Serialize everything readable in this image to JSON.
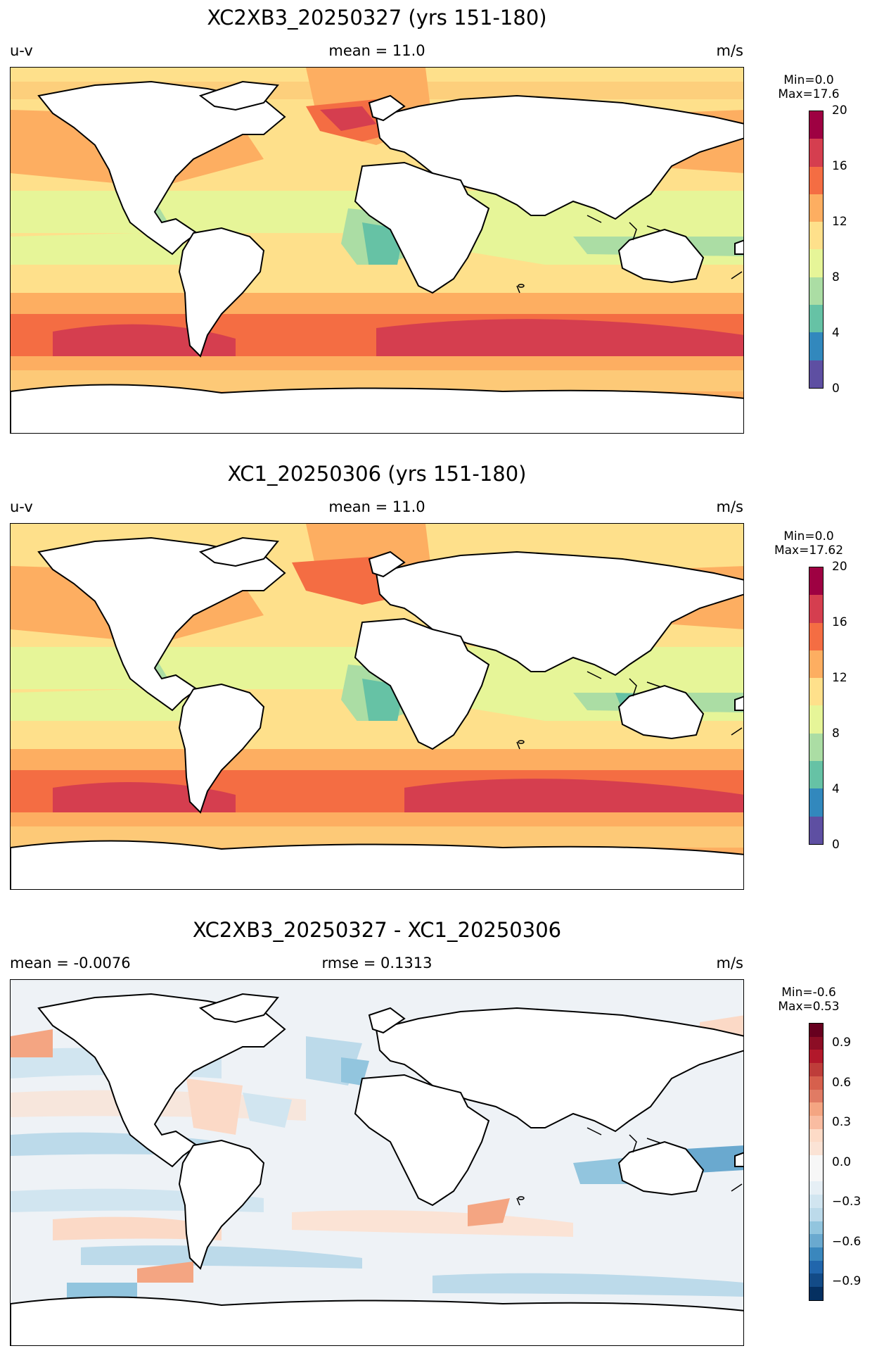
{
  "panels": [
    {
      "title": "XC2XB3_20250327 (yrs 151-180)",
      "left_label": "u-v",
      "center_label": "mean = 11.0",
      "right_label": "m/s",
      "cb_min": "Min=0.0",
      "cb_max": "Max=17.6",
      "cb_ticks": [
        "0",
        "4",
        "8",
        "12",
        "16",
        "20"
      ],
      "cb_colors": [
        "#5e4fa2",
        "#3288bd",
        "#66c2a5",
        "#abdda4",
        "#e6f598",
        "#fee08b",
        "#fdae61",
        "#f46d43",
        "#d53e4f",
        "#9e0142"
      ]
    },
    {
      "title": "XC1_20250306 (yrs 151-180)",
      "left_label": "u-v",
      "center_label": "mean = 11.0",
      "right_label": "m/s",
      "cb_min": "Min=0.0",
      "cb_max": "Max=17.62",
      "cb_ticks": [
        "0",
        "4",
        "8",
        "12",
        "16",
        "20"
      ],
      "cb_colors": [
        "#5e4fa2",
        "#3288bd",
        "#66c2a5",
        "#abdda4",
        "#e6f598",
        "#fee08b",
        "#fdae61",
        "#f46d43",
        "#d53e4f",
        "#9e0142"
      ]
    },
    {
      "title": "XC2XB3_20250327 - XC1_20250306",
      "left_label": "mean = -0.0076",
      "center_label": "rmse = 0.1313",
      "right_label": "m/s",
      "cb_min": "Min=-0.6",
      "cb_max": "Max=0.53",
      "cb_ticks": [
        "−0.9",
        "−0.6",
        "−0.3",
        "0.0",
        "0.3",
        "0.6",
        "0.9"
      ],
      "cb_colors": [
        "#053061",
        "#134b87",
        "#2166ac",
        "#3a87bd",
        "#6aa9cf",
        "#92c5de",
        "#bcdaea",
        "#d1e5f0",
        "#e6eff5",
        "#f7f7f7",
        "#f7f7f7",
        "#fbe3d5",
        "#fddbc7",
        "#f9bca1",
        "#f4a582",
        "#e07b64",
        "#d6604d",
        "#be3d3a",
        "#b2182b",
        "#8c0d25",
        "#67001f"
      ]
    }
  ]
}
